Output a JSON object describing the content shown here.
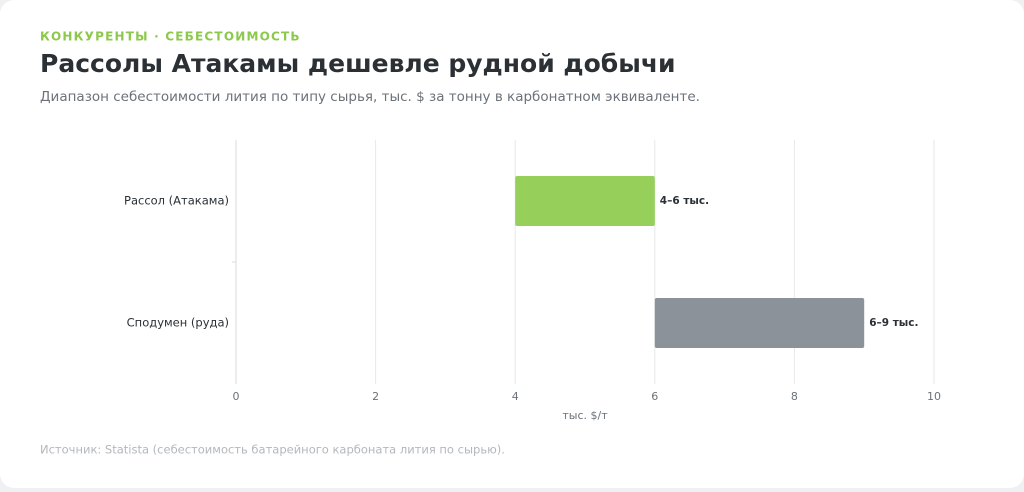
{
  "chart_data": {
    "type": "range-bar",
    "orientation": "horizontal",
    "eyebrow": "КОНКУРЕНТЫ · СЕБЕСТОИМОСТЬ",
    "title": "Рассолы Атакамы дешевле рудной добычи",
    "subtitle": "Диапазон себестоимости лития по типу сырья, тыс. $ за тонну в карбонатном эквиваленте.",
    "categories": [
      "Рассол (Атакама)",
      "Сподумен (руда)"
    ],
    "starts": [
      4,
      6
    ],
    "ends": [
      6,
      9
    ],
    "value_labels": [
      "4–6 тыс.",
      "6–9 тыс."
    ],
    "colors": [
      "#96cf5a",
      "#8b9299"
    ],
    "xlim": [
      0,
      10
    ],
    "xticks": [
      0,
      2,
      4,
      6,
      8,
      10
    ],
    "grid": true,
    "xlabel": "тыс. $/т",
    "source": "Источник: Statista (себестоимость батарейного карбоната лития по сырью)."
  }
}
